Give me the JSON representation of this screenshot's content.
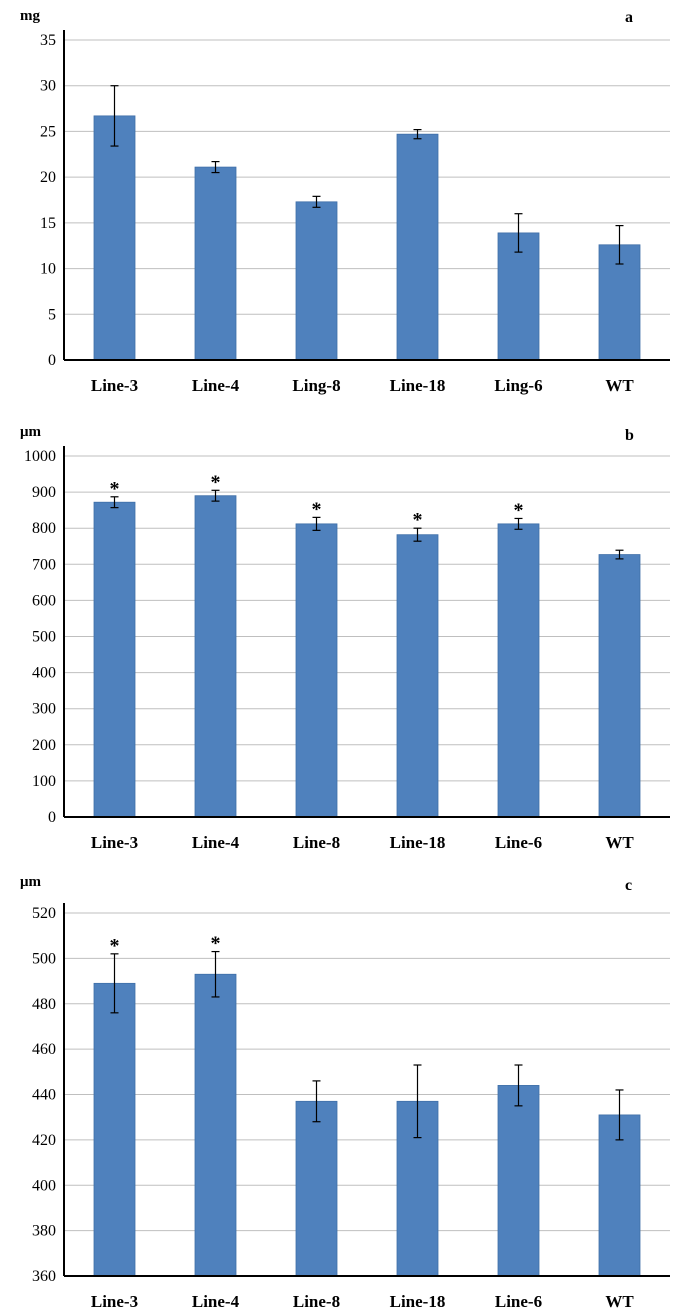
{
  "colors": {
    "bar": "#4f81bd",
    "bar_edge": "#3f6fa8",
    "grid": "#bfbfbf"
  },
  "chart_data": [
    {
      "type": "bar",
      "panel_label": "a",
      "ylabel": "mg",
      "categories": [
        "Line-3",
        "Line-4",
        "Ling-8",
        "Line-18",
        "Ling-6",
        "WT"
      ],
      "values": [
        26.7,
        21.1,
        17.3,
        24.7,
        13.9,
        12.6
      ],
      "errors": [
        3.3,
        0.6,
        0.6,
        0.5,
        2.1,
        2.1
      ],
      "significance": [
        "",
        "",
        "",
        "",
        "",
        ""
      ],
      "ylim": [
        0,
        35
      ],
      "yticks": [
        0,
        5,
        10,
        15,
        20,
        25,
        30,
        35
      ],
      "grid": true
    },
    {
      "type": "bar",
      "panel_label": "b",
      "ylabel": "μm",
      "categories": [
        "Line-3",
        "Line-4",
        "Line-8",
        "Line-18",
        "Line-6",
        "WT"
      ],
      "values": [
        872,
        890,
        812,
        782,
        812,
        727
      ],
      "errors": [
        15,
        15,
        18,
        18,
        15,
        12
      ],
      "significance": [
        "*",
        "*",
        "*",
        "*",
        "*",
        ""
      ],
      "ylim": [
        0,
        1000
      ],
      "yticks": [
        0,
        100,
        200,
        300,
        400,
        500,
        600,
        700,
        800,
        900,
        1000
      ],
      "grid": true
    },
    {
      "type": "bar",
      "panel_label": "c",
      "ylabel": "μm",
      "categories": [
        "Line-3",
        "Line-4",
        "Line-8",
        "Line-18",
        "Line-6",
        "WT"
      ],
      "values": [
        489,
        493,
        437,
        437,
        444,
        431
      ],
      "errors": [
        13,
        10,
        9,
        16,
        9,
        11
      ],
      "significance": [
        "*",
        "*",
        "",
        "",
        "",
        ""
      ],
      "ylim": [
        360,
        520
      ],
      "yticks": [
        360,
        380,
        400,
        420,
        440,
        460,
        480,
        500,
        520
      ],
      "grid": true
    }
  ]
}
